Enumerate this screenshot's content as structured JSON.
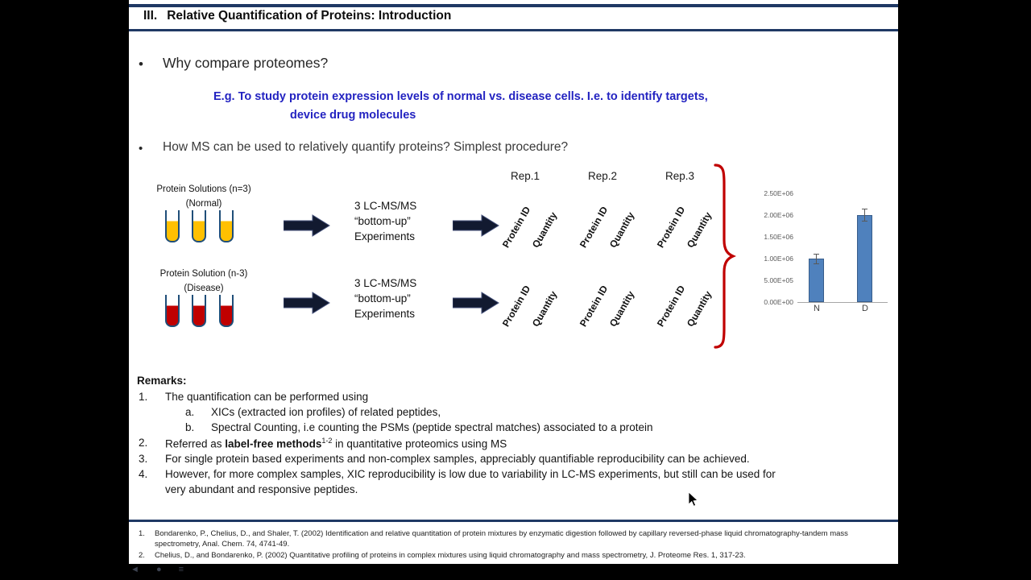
{
  "slide": {
    "title_num": "III.",
    "title_text": "Relative Quantification of Proteins: Introduction",
    "bullet_glyph": "•",
    "bullet1": "Why compare proteomes?",
    "example": {
      "line1": "E.g. To study protein expression levels of normal vs. disease cells. I.e. to identify targets,",
      "line2": "device drug molecules"
    },
    "bullet2": "How MS can be used to relatively quantify proteins? Simplest procedure?",
    "diagram": {
      "normal_label1": "Protein Solutions (n=3)",
      "normal_label2": "(Normal)",
      "disease_label1": "Protein Solution (n-3)",
      "disease_label2": "(Disease)",
      "process1": "3 LC-MS/MS",
      "process2": "“bottom-up”",
      "process3": "Experiments",
      "rep1": "Rep.1",
      "rep2": "Rep.2",
      "rep3": "Rep.3",
      "col_protein_id": "Protein ID",
      "col_quantity": "Quantity"
    },
    "remarks": {
      "heading": "Remarks:",
      "n1": "1.",
      "item1": "The quantification can be performed using",
      "n1a": "a.",
      "item1a": "XICs (extracted ion profiles) of related peptides,",
      "n1b": "b.",
      "item1b": "Spectral Counting, i.e counting the PSMs (peptide spectral matches) associated to a protein",
      "n2": "2.",
      "item2_pre": "Referred as ",
      "item2_bold": "label-free methods",
      "item2_sup": "1-2",
      "item2_post": " in quantitative proteomics using MS",
      "n3": "3.",
      "item3": "For single protein based experiments and non-complex samples, appreciably quantifiable reproducibility can be achieved.",
      "n4": "4.",
      "item4_line1": "However, for more complex samples, XIC reproducibility is low due to variability in LC-MS experiments, but still can be used for",
      "item4_line2": "very abundant and responsive peptides."
    },
    "references": {
      "n1": "1.",
      "ref1": "Bondarenko, P., Chelius, D., and Shaler, T. (2002) Identification and relative quantitation of protein mixtures by enzymatic digestion followed by capillary reversed-phase liquid chromatography-tandem mass spectrometry, Anal. Chem. 74, 4741-49.",
      "n2": "2.",
      "ref2": "Chelius, D., and Bondarenko, P. (2002) Quantitative profiling of proteins in complex mixtures using liquid chromatography and mass spectrometry, J. Proteome Res. 1, 317-23."
    }
  },
  "chart_data": {
    "type": "bar",
    "categories": [
      "N",
      "D"
    ],
    "values": [
      1000000,
      2000000
    ],
    "error_bars": [
      120000,
      150000
    ],
    "yticks": [
      "2.50E+06",
      "2.00E+06",
      "1.50E+06",
      "1.00E+06",
      "5.00E+05",
      "0.00E+00"
    ],
    "ylim": [
      0,
      2500000
    ],
    "title": "",
    "xlabel": "",
    "ylabel": "",
    "legend": false,
    "grid": false,
    "bar_color": "#4f81bd",
    "bar_border_color": "#385d8a"
  },
  "colors": {
    "rule_navy": "#1f3864",
    "example_blue": "#2323c1",
    "brace_red": "#c00000",
    "tube_fill_normal": "#ffc000",
    "tube_fill_disease": "#c00000",
    "tube_cap_blue": "#17375e"
  },
  "player": {
    "icons": [
      {
        "name": "rewind-icon",
        "glyph": "◄"
      },
      {
        "name": "record-icon",
        "glyph": "●"
      },
      {
        "name": "menu-icon",
        "glyph": "≡"
      }
    ]
  }
}
